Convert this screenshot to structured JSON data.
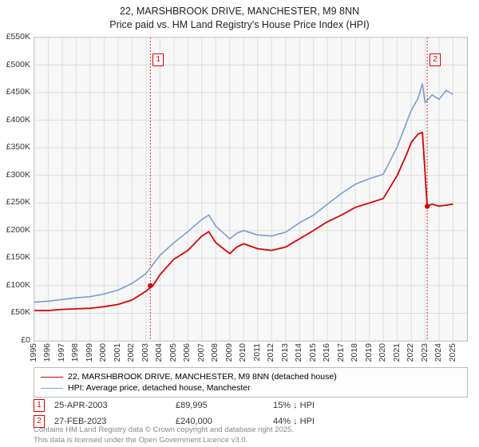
{
  "title_line1": "22, MARSHBROOK DRIVE, MANCHESTER, M9 8NN",
  "title_line2": "Price paid vs. HM Land Registry's House Price Index (HPI)",
  "chart": {
    "type": "line",
    "background_color": "#f7f7f7",
    "grid_color": "#dddddd",
    "border_color": "#bbbbbb",
    "x_years": [
      1995,
      1996,
      1997,
      1998,
      1999,
      2000,
      2001,
      2002,
      2003,
      2004,
      2005,
      2006,
      2007,
      2008,
      2009,
      2010,
      2011,
      2012,
      2013,
      2014,
      2015,
      2016,
      2017,
      2018,
      2019,
      2020,
      2021,
      2022,
      2023,
      2024,
      2025
    ],
    "x_domain": [
      1995,
      2026
    ],
    "y_ticks": [
      0,
      50,
      100,
      150,
      200,
      250,
      300,
      350,
      400,
      450,
      500,
      550
    ],
    "y_tick_labels": [
      "£0",
      "£50K",
      "£100K",
      "£150K",
      "£200K",
      "£250K",
      "£300K",
      "£350K",
      "£400K",
      "£450K",
      "£500K",
      "£550K"
    ],
    "y_domain": [
      0,
      550
    ],
    "series": [
      {
        "name": "price_paid",
        "label": "22, MARSHBROOK DRIVE, MANCHESTER, M9 8NN (detached house)",
        "color": "#dd0000",
        "width": 1.8,
        "data": [
          [
            1995,
            55
          ],
          [
            1996,
            55
          ],
          [
            1997,
            57
          ],
          [
            1998,
            58
          ],
          [
            1999,
            59
          ],
          [
            2000,
            62
          ],
          [
            2001,
            66
          ],
          [
            2002,
            74
          ],
          [
            2003,
            90
          ],
          [
            2003.5,
            100
          ],
          [
            2004,
            120
          ],
          [
            2005,
            148
          ],
          [
            2006,
            164
          ],
          [
            2007,
            190
          ],
          [
            2007.5,
            198
          ],
          [
            2008,
            178
          ],
          [
            2009,
            158
          ],
          [
            2009.5,
            170
          ],
          [
            2010,
            176
          ],
          [
            2011,
            167
          ],
          [
            2012,
            164
          ],
          [
            2013,
            170
          ],
          [
            2014,
            185
          ],
          [
            2015,
            200
          ],
          [
            2016,
            216
          ],
          [
            2017,
            228
          ],
          [
            2018,
            242
          ],
          [
            2019,
            250
          ],
          [
            2020,
            258
          ],
          [
            2021,
            300
          ],
          [
            2021.7,
            340
          ],
          [
            2022,
            360
          ],
          [
            2022.5,
            375
          ],
          [
            2022.8,
            378
          ],
          [
            2023.15,
            244
          ],
          [
            2023.5,
            248
          ],
          [
            2024,
            244
          ],
          [
            2025,
            248
          ]
        ]
      },
      {
        "name": "hpi",
        "label": "HPI: Average price, detached house, Manchester",
        "color": "#7a9ecf",
        "width": 1.6,
        "data": [
          [
            1995,
            70
          ],
          [
            1996,
            72
          ],
          [
            1997,
            75
          ],
          [
            1998,
            78
          ],
          [
            1999,
            80
          ],
          [
            2000,
            85
          ],
          [
            2001,
            92
          ],
          [
            2002,
            104
          ],
          [
            2003,
            122
          ],
          [
            2004,
            155
          ],
          [
            2005,
            178
          ],
          [
            2006,
            198
          ],
          [
            2007,
            220
          ],
          [
            2007.5,
            228
          ],
          [
            2008,
            208
          ],
          [
            2009,
            185
          ],
          [
            2009.5,
            195
          ],
          [
            2010,
            200
          ],
          [
            2011,
            192
          ],
          [
            2012,
            190
          ],
          [
            2013,
            197
          ],
          [
            2014,
            214
          ],
          [
            2015,
            228
          ],
          [
            2016,
            248
          ],
          [
            2017,
            267
          ],
          [
            2018,
            284
          ],
          [
            2019,
            294
          ],
          [
            2020,
            302
          ],
          [
            2021,
            352
          ],
          [
            2021.7,
            398
          ],
          [
            2022,
            418
          ],
          [
            2022.5,
            440
          ],
          [
            2022.8,
            466
          ],
          [
            2023,
            432
          ],
          [
            2023.5,
            446
          ],
          [
            2024,
            438
          ],
          [
            2024.5,
            454
          ],
          [
            2025,
            447
          ]
        ]
      }
    ],
    "sale_markers": [
      {
        "n": "1",
        "x": 2003.31,
        "box_y": 520
      },
      {
        "n": "2",
        "x": 2023.15,
        "box_y": 520
      }
    ],
    "sale_marker_color": "#dd0000",
    "sale_marker_bg": "#ffffff",
    "sale_dot_color": "#dd0000"
  },
  "legend": {
    "border_color": "#bbbbbb"
  },
  "sales": [
    {
      "n": "1",
      "date": "25-APR-2003",
      "price": "£89,995",
      "hpi": "15% ↓ HPI"
    },
    {
      "n": "2",
      "date": "27-FEB-2023",
      "price": "£240,000",
      "hpi": "44% ↓ HPI"
    }
  ],
  "copyright_line1": "Contains HM Land Registry data © Crown copyright and database right 2025.",
  "copyright_line2": "This data is licensed under the Open Government Licence v3.0."
}
